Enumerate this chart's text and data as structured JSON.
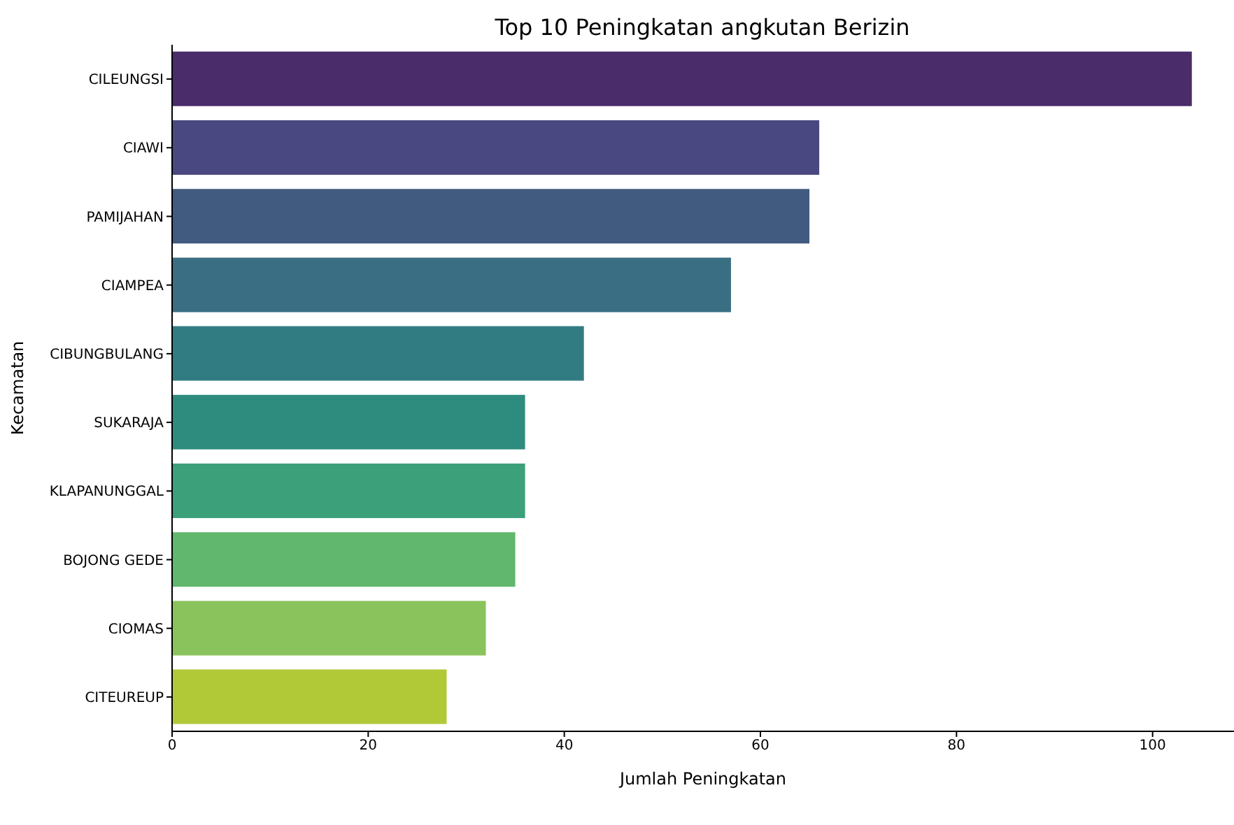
{
  "chart_data": {
    "type": "bar",
    "orientation": "horizontal",
    "title": "Top 10 Peningkatan angkutan Berizin",
    "xlabel": "Jumlah Peningkatan",
    "ylabel": "Kecamatan",
    "categories": [
      "CILEUNGSI",
      "CIAWI",
      "PAMIJAHAN",
      "CIAMPEA",
      "CIBUNGBULANG",
      "SUKARAJA",
      "KLAPANUNGGAL",
      "BOJONG GEDE",
      "CIOMAS",
      "CITEUREUP"
    ],
    "values": [
      104,
      66,
      65,
      57,
      42,
      36,
      36,
      35,
      32,
      28
    ],
    "colors": [
      "#4a2c6a",
      "#4a4880",
      "#415b80",
      "#3a6e83",
      "#317c82",
      "#2e8c7e",
      "#3ca07a",
      "#62b76e",
      "#8ac35b",
      "#b1c837"
    ],
    "xlim": [
      0,
      108.3
    ],
    "xticks": [
      0,
      20,
      40,
      60,
      80,
      100
    ],
    "grid": false
  }
}
